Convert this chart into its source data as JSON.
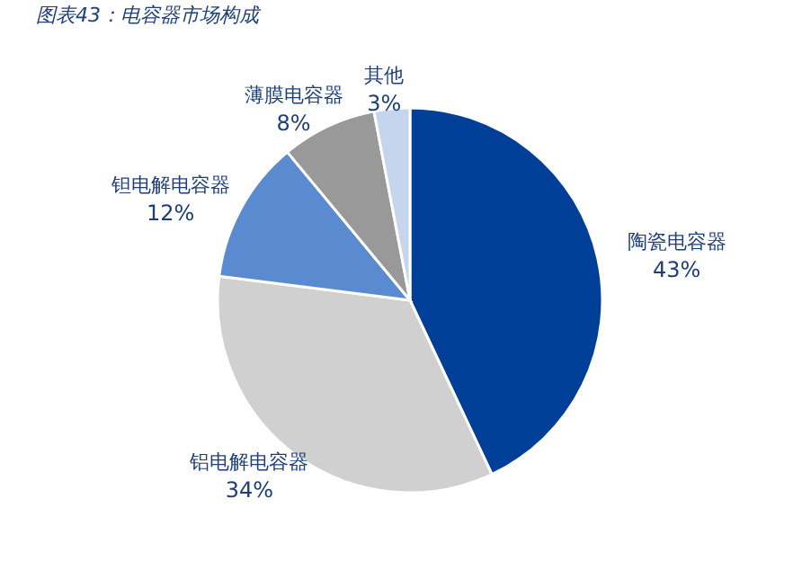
{
  "chart_data": {
    "type": "pie",
    "title": "图表43：电容器市场构成",
    "categories": [
      "陶瓷电容器",
      "铝电解电容器",
      "钽电解电容器",
      "薄膜电容器",
      "其他"
    ],
    "values": [
      43,
      34,
      12,
      8,
      3
    ],
    "value_labels": [
      "43%",
      "34%",
      "12%",
      "8%",
      "3%"
    ],
    "colors": [
      "#003f98",
      "#d0d0d0",
      "#5a8ad0",
      "#999999",
      "#c5d5ee"
    ]
  }
}
